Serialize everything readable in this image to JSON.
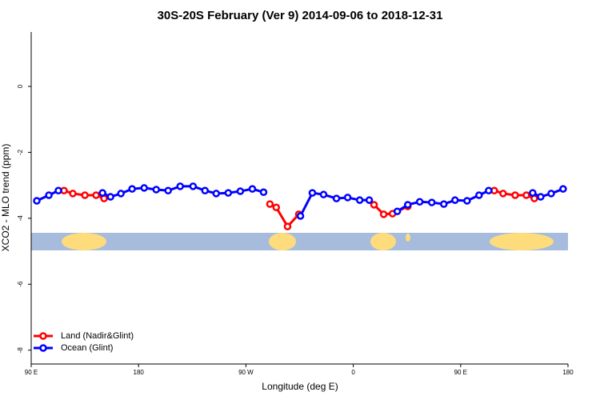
{
  "chart_data": {
    "type": "line",
    "title": "30S-20S February (Ver 9)   2014-09-06 to 2018-12-31",
    "xlabel": "Longitude (deg E)",
    "ylabel": "XCO2 - MLO trend (ppm)",
    "xlim": [
      90,
      540
    ],
    "ylim": [
      -8.42,
      1.65
    ],
    "xticks": [
      {
        "value": 90,
        "label": "90 E"
      },
      {
        "value": 180,
        "label": "180"
      },
      {
        "value": 270,
        "label": "90 W"
      },
      {
        "value": 360,
        "label": "0"
      },
      {
        "value": 450,
        "label": "90 E"
      },
      {
        "value": 540,
        "label": "180"
      }
    ],
    "yticks": [
      0,
      -2,
      -4,
      -6,
      -8
    ],
    "legend": "bottomleft",
    "series": [
      {
        "name": "Land (Nadir&Glint)",
        "color": "#ff0000",
        "x": [
          117.5,
          124.9,
          135.0,
          144.4,
          151.1,
          null,
          290.1,
          295.4,
          304.9,
          314.3,
          null,
          377.4,
          385.5,
          392.9,
          405.7,
          null,
          478.2,
          485.6,
          495.7,
          505.1,
          511.8
        ],
        "values": [
          -3.16,
          -3.25,
          -3.3,
          -3.3,
          -3.4,
          null,
          -3.57,
          -3.67,
          -4.25,
          -3.88,
          null,
          -3.59,
          -3.88,
          -3.86,
          -3.64,
          null,
          -3.16,
          -3.25,
          -3.3,
          -3.3,
          -3.4
        ]
      },
      {
        "name": "Ocean (Glint)",
        "color": "#0000ff",
        "x": [
          94.7,
          104.8,
          112.8,
          null,
          149.8,
          156.5,
          165.2,
          174.6,
          184.7,
          194.8,
          204.8,
          214.9,
          225.7,
          235.7,
          245.1,
          255.2,
          265.3,
          275.4,
          284.8,
          null,
          315.7,
          325.7,
          335.1,
          345.9,
          355.3,
          365.4,
          373.4,
          null,
          396.9,
          405.7,
          415.7,
          425.8,
          435.9,
          445.3,
          455.4,
          465.4,
          473.5,
          null,
          510.4,
          517.1,
          525.9,
          535.9
        ],
        "values": [
          -3.47,
          -3.3,
          -3.16,
          null,
          -3.23,
          -3.35,
          -3.25,
          -3.11,
          -3.08,
          -3.13,
          -3.16,
          -3.03,
          -3.03,
          -3.16,
          -3.25,
          -3.23,
          -3.18,
          -3.11,
          -3.21,
          null,
          -3.93,
          -3.23,
          -3.28,
          -3.4,
          -3.37,
          -3.45,
          -3.45,
          null,
          -3.79,
          -3.59,
          -3.5,
          -3.52,
          -3.57,
          -3.45,
          -3.47,
          -3.3,
          -3.16,
          null,
          -3.23,
          -3.35,
          -3.25,
          -3.11
        ]
      }
    ]
  }
}
